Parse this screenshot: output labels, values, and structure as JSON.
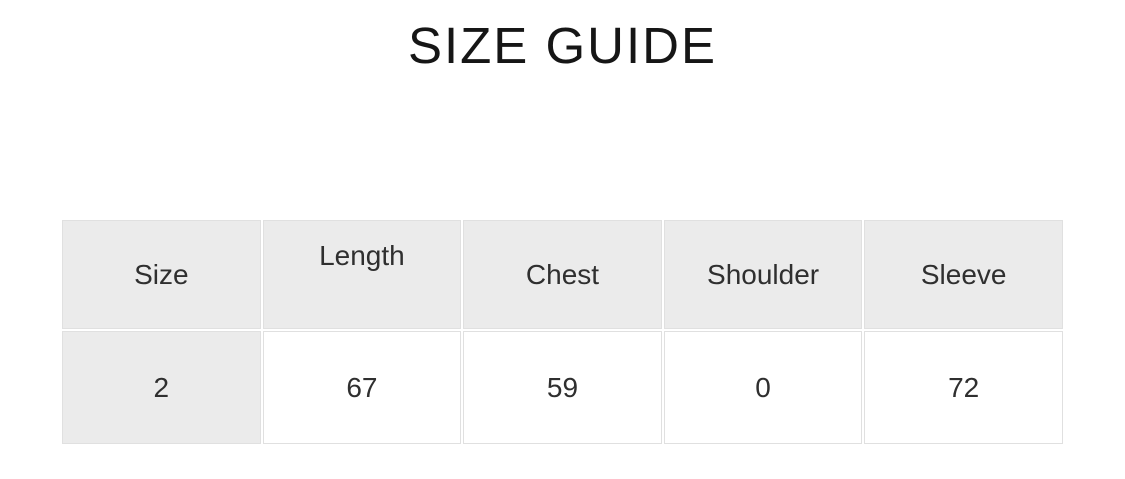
{
  "title": "SIZE GUIDE",
  "chart_data": {
    "type": "table",
    "title": "SIZE GUIDE",
    "columns": [
      "Size",
      "Length",
      "Chest",
      "Shoulder",
      "Sleeve"
    ],
    "rows": [
      [
        "2",
        "67",
        "59",
        "0",
        "72"
      ]
    ]
  },
  "colors": {
    "header_bg": "#ebebeb",
    "border_color": "#e0e0e0",
    "cell_bg": "#ffffff",
    "text_color": "#2f2f2f",
    "title_color": "#161616"
  }
}
